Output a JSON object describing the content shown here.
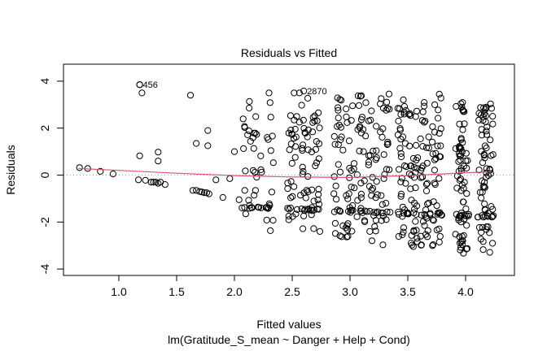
{
  "chart_data": {
    "type": "scatter",
    "title": "Residuals vs Fitted",
    "xlabel": "Fitted values",
    "sublabel": "lm(Gratitude_S_mean ~ Danger + Help + Cond)",
    "ylabel": "Residuals",
    "xlim": [
      0.55,
      4.38
    ],
    "ylim": [
      -4.3,
      4.3
    ],
    "xticks": [
      1.0,
      1.5,
      2.0,
      2.5,
      3.0,
      3.5,
      4.0
    ],
    "xtick_labels": [
      "1.0",
      "1.5",
      "2.0",
      "2.5",
      "3.0",
      "3.5",
      "4.0"
    ],
    "yticks": [
      -4,
      -2,
      0,
      2,
      4
    ],
    "ytick_labels": [
      "-4",
      "-2",
      "0",
      "2",
      "4"
    ],
    "reference_line_y": 0,
    "smooth_line": {
      "x": [
        0.65,
        1.0,
        1.5,
        2.0,
        2.5,
        3.0,
        3.5,
        3.8,
        4.0,
        4.22
      ],
      "y": [
        0.28,
        0.2,
        0.08,
        -0.02,
        -0.08,
        -0.1,
        -0.02,
        0.05,
        0.1,
        0.14
      ]
    },
    "labeled_points": [
      {
        "label": "456",
        "x": 1.18,
        "y": 3.85
      },
      {
        "label": "2870",
        "x": 2.6,
        "y": 3.58
      }
    ],
    "sparse_points": {
      "x": [
        0.66,
        0.73,
        0.84,
        0.95,
        1.17,
        1.2,
        1.23,
        1.28,
        1.3,
        1.32,
        1.34,
        1.36,
        1.4,
        1.18,
        1.18,
        1.34,
        1.34,
        1.62,
        1.64,
        1.67,
        1.7,
        1.72,
        1.74,
        1.76,
        1.78,
        1.67,
        1.77,
        1.77,
        1.84,
        1.9,
        2.0,
        2.04,
        1.96
      ],
      "y": [
        0.32,
        0.28,
        0.16,
        0.05,
        -0.2,
        3.5,
        -0.22,
        -0.3,
        -0.3,
        -0.3,
        -0.35,
        -0.3,
        -0.4,
        0.82,
        3.85,
        0.98,
        0.6,
        3.4,
        -0.65,
        -0.65,
        -0.7,
        -0.72,
        -0.75,
        -0.75,
        -0.8,
        1.35,
        1.25,
        1.9,
        -0.2,
        -0.95,
        1.0,
        -1.05,
        -0.15
      ]
    },
    "dense_columns_fitted": [
      2.1,
      2.2,
      2.3,
      2.5,
      2.6,
      2.7,
      2.9,
      3.0,
      3.1,
      3.2,
      3.3,
      3.45,
      3.55,
      3.65,
      3.75,
      3.95,
      3.98,
      4.15,
      4.2
    ]
  }
}
